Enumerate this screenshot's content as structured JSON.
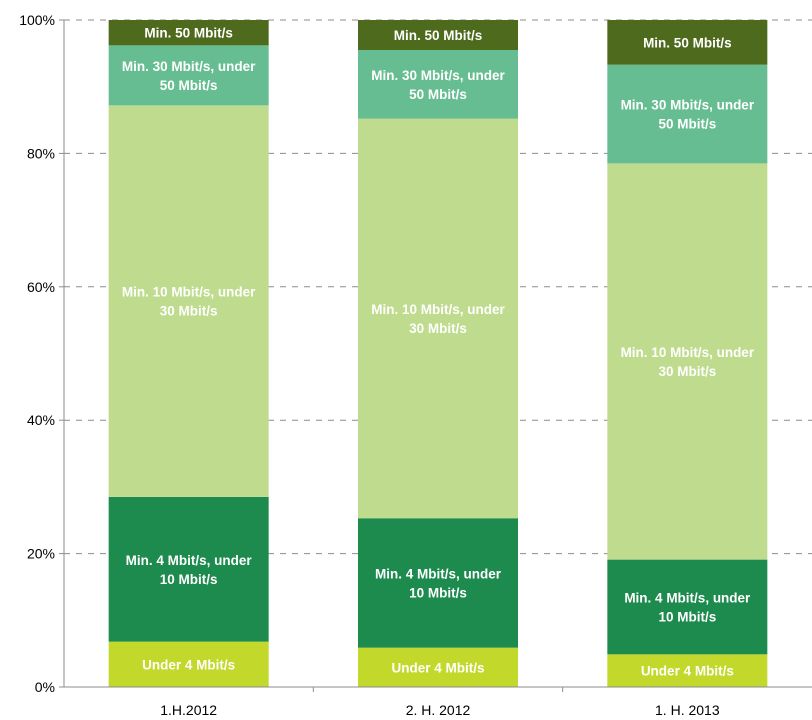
{
  "chart_data": {
    "type": "bar",
    "stacked": true,
    "normalized": true,
    "categories": [
      "1.H.2012",
      "2. H. 2012",
      "1. H. 2013"
    ],
    "series": [
      {
        "name": "Under 4 Mbit/s",
        "label_lines": [
          "Under 4 Mbit/s"
        ],
        "color": "#c2d82b",
        "values": [
          6.8,
          5.9,
          4.9
        ]
      },
      {
        "name": "Min. 4 Mbit/s, under 10 Mbit/s",
        "label_lines": [
          "Min. 4 Mbit/s, under",
          "10 Mbit/s"
        ],
        "color": "#1d8a4e",
        "values": [
          21.7,
          19.4,
          14.2
        ]
      },
      {
        "name": "Min. 10 Mbit/s, under 30 Mbit/s",
        "label_lines": [
          "Min. 10 Mbit/s, under",
          "30 Mbit/s"
        ],
        "color": "#bfdb8e",
        "values": [
          58.7,
          59.9,
          59.4
        ]
      },
      {
        "name": "Min. 30 Mbit/s, under 50 Mbit/s",
        "label_lines": [
          "Min. 30 Mbit/s, under",
          "50 Mbit/s"
        ],
        "color": "#66bd91",
        "values": [
          9.0,
          10.3,
          14.8
        ]
      },
      {
        "name": "Min. 50 Mbit/s",
        "label_lines": [
          "Min. 50 Mbit/s"
        ],
        "color": "#4e6a1d",
        "values": [
          3.8,
          4.5,
          6.7
        ]
      }
    ],
    "y_ticks": [
      "0%",
      "20%",
      "40%",
      "60%",
      "80%",
      "100%"
    ],
    "ylim": [
      0,
      100
    ],
    "grid": true,
    "legend": "none"
  }
}
